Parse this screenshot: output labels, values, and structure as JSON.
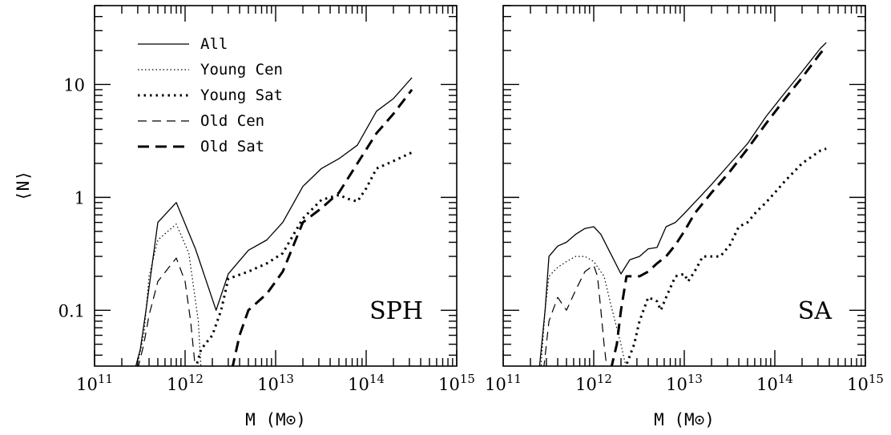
{
  "chart_data": [
    {
      "type": "line",
      "panel_label": "SPH",
      "xlabel": "M (M⊙)",
      "ylabel": "⟨N⟩",
      "x_scale": "log",
      "y_scale": "log",
      "xlim": [
        100000000000.0,
        1000000000000000.0
      ],
      "ylim": [
        0.032,
        50
      ],
      "x_tick_labels": [
        {
          "value": 100000000000.0,
          "base": "10",
          "exp": "11"
        },
        {
          "value": 1000000000000.0,
          "base": "10",
          "exp": "12"
        },
        {
          "value": 10000000000000.0,
          "base": "10",
          "exp": "13"
        },
        {
          "value": 100000000000000.0,
          "base": "10",
          "exp": "14"
        },
        {
          "value": 1000000000000000.0,
          "base": "10",
          "exp": "15"
        }
      ],
      "y_tick_labels": [
        {
          "value": 0.1,
          "label": "0.1"
        },
        {
          "value": 1,
          "label": "1"
        },
        {
          "value": 10,
          "label": "10"
        }
      ],
      "legend": {
        "position": "top-left"
      },
      "series": [
        {
          "name": "All",
          "style": "solid-thin",
          "points": [
            [
              280000000000.0,
              0.03
            ],
            [
              320000000000.0,
              0.045
            ],
            [
              370000000000.0,
              0.1
            ],
            [
              500000000000.0,
              0.6
            ],
            [
              800000000000.0,
              0.9
            ],
            [
              1300000000000.0,
              0.35
            ],
            [
              2200000000000.0,
              0.1
            ],
            [
              3000000000000.0,
              0.21
            ],
            [
              5000000000000.0,
              0.34
            ],
            [
              8000000000000.0,
              0.42
            ],
            [
              12000000000000.0,
              0.6
            ],
            [
              20000000000000.0,
              1.25
            ],
            [
              32000000000000.0,
              1.8
            ],
            [
              50000000000000.0,
              2.2
            ],
            [
              80000000000000.0,
              2.9
            ],
            [
              130000000000000.0,
              5.8
            ],
            [
              200000000000000.0,
              7.5
            ],
            [
              320000000000000.0,
              11.5
            ]
          ]
        },
        {
          "name": "Young Cen",
          "style": "dotted-thin",
          "points": [
            [
              290000000000.0,
              0.03
            ],
            [
              350000000000.0,
              0.06
            ],
            [
              400000000000.0,
              0.2
            ],
            [
              500000000000.0,
              0.42
            ],
            [
              800000000000.0,
              0.58
            ],
            [
              1100000000000.0,
              0.32
            ],
            [
              1400000000000.0,
              0.08
            ],
            [
              1500000000000.0,
              0.03
            ]
          ]
        },
        {
          "name": "Young Sat",
          "style": "dotted-thick",
          "points": [
            [
              1300000000000.0,
              0.03
            ],
            [
              1500000000000.0,
              0.045
            ],
            [
              2000000000000.0,
              0.06
            ],
            [
              2500000000000.0,
              0.1
            ],
            [
              3000000000000.0,
              0.19
            ],
            [
              5000000000000.0,
              0.22
            ],
            [
              8000000000000.0,
              0.26
            ],
            [
              12000000000000.0,
              0.32
            ],
            [
              20000000000000.0,
              0.65
            ],
            [
              32000000000000.0,
              0.95
            ],
            [
              40000000000000.0,
              1.0
            ],
            [
              50000000000000.0,
              1.05
            ],
            [
              63000000000000.0,
              0.97
            ],
            [
              80000000000000.0,
              0.92
            ],
            [
              100000000000000.0,
              1.2
            ],
            [
              130000000000000.0,
              1.8
            ],
            [
              200000000000000.0,
              2.1
            ],
            [
              320000000000000.0,
              2.5
            ]
          ]
        },
        {
          "name": "Old Cen",
          "style": "dashed-thin",
          "points": [
            [
              300000000000.0,
              0.03
            ],
            [
              350000000000.0,
              0.05
            ],
            [
              400000000000.0,
              0.09
            ],
            [
              500000000000.0,
              0.18
            ],
            [
              800000000000.0,
              0.29
            ],
            [
              1000000000000.0,
              0.18
            ],
            [
              1150000000000.0,
              0.08
            ],
            [
              1300000000000.0,
              0.03
            ]
          ]
        },
        {
          "name": "Old Sat",
          "style": "dashed-thick",
          "points": [
            [
              3300000000000.0,
              0.03
            ],
            [
              4000000000000.0,
              0.06
            ],
            [
              5000000000000.0,
              0.1
            ],
            [
              8000000000000.0,
              0.14
            ],
            [
              12000000000000.0,
              0.22
            ],
            [
              20000000000000.0,
              0.6
            ],
            [
              32000000000000.0,
              0.8
            ],
            [
              50000000000000.0,
              1.1
            ],
            [
              80000000000000.0,
              2.0
            ],
            [
              130000000000000.0,
              3.7
            ],
            [
              200000000000000.0,
              5.5
            ],
            [
              320000000000000.0,
              9.0
            ]
          ]
        }
      ]
    },
    {
      "type": "line",
      "panel_label": "SA",
      "xlabel": "M (M⊙)",
      "ylabel": "",
      "x_scale": "log",
      "y_scale": "log",
      "xlim": [
        100000000000.0,
        1000000000000000.0
      ],
      "ylim": [
        0.032,
        50
      ],
      "x_tick_labels": [
        {
          "value": 100000000000.0,
          "base": "10",
          "exp": "11"
        },
        {
          "value": 1000000000000.0,
          "base": "10",
          "exp": "12"
        },
        {
          "value": 10000000000000.0,
          "base": "10",
          "exp": "13"
        },
        {
          "value": 100000000000000.0,
          "base": "10",
          "exp": "14"
        },
        {
          "value": 1000000000000000.0,
          "base": "10",
          "exp": "15"
        }
      ],
      "y_tick_labels": [],
      "series": [
        {
          "name": "All",
          "style": "solid-thin",
          "points": [
            [
              250000000000.0,
              0.03
            ],
            [
              290000000000.0,
              0.1
            ],
            [
              320000000000.0,
              0.3
            ],
            [
              400000000000.0,
              0.37
            ],
            [
              500000000000.0,
              0.4
            ],
            [
              630000000000.0,
              0.47
            ],
            [
              800000000000.0,
              0.53
            ],
            [
              1000000000000.0,
              0.55
            ],
            [
              1200000000000.0,
              0.47
            ],
            [
              1500000000000.0,
              0.33
            ],
            [
              2000000000000.0,
              0.21
            ],
            [
              2500000000000.0,
              0.28
            ],
            [
              3200000000000.0,
              0.3
            ],
            [
              4000000000000.0,
              0.35
            ],
            [
              5000000000000.0,
              0.36
            ],
            [
              6300000000000.0,
              0.55
            ],
            [
              8000000000000.0,
              0.6
            ],
            [
              10000000000000.0,
              0.72
            ],
            [
              13000000000000.0,
              0.9
            ],
            [
              20000000000000.0,
              1.3
            ],
            [
              32000000000000.0,
              2.0
            ],
            [
              50000000000000.0,
              3.0
            ],
            [
              80000000000000.0,
              5.2
            ],
            [
              130000000000000.0,
              8.5
            ],
            [
              200000000000000.0,
              13.0
            ],
            [
              320000000000000.0,
              21.0
            ],
            [
              370000000000000.0,
              23.5
            ]
          ]
        },
        {
          "name": "Young Cen",
          "style": "dotted-thin",
          "points": [
            [
              260000000000.0,
              0.03
            ],
            [
              290000000000.0,
              0.1
            ],
            [
              320000000000.0,
              0.2
            ],
            [
              400000000000.0,
              0.24
            ],
            [
              500000000000.0,
              0.27
            ],
            [
              630000000000.0,
              0.3
            ],
            [
              800000000000.0,
              0.3
            ],
            [
              1000000000000.0,
              0.27
            ],
            [
              1300000000000.0,
              0.2
            ],
            [
              1600000000000.0,
              0.1
            ],
            [
              2000000000000.0,
              0.05
            ],
            [
              2300000000000.0,
              0.03
            ]
          ]
        },
        {
          "name": "Young Sat",
          "style": "dotted-thick",
          "points": [
            [
              2200000000000.0,
              0.03
            ],
            [
              2800000000000.0,
              0.05
            ],
            [
              3200000000000.0,
              0.08
            ],
            [
              4000000000000.0,
              0.13
            ],
            [
              5000000000000.0,
              0.12
            ],
            [
              5500000000000.0,
              0.1
            ],
            [
              6300000000000.0,
              0.13
            ],
            [
              8000000000000.0,
              0.2
            ],
            [
              10000000000000.0,
              0.21
            ],
            [
              11000000000000.0,
              0.18
            ],
            [
              13000000000000.0,
              0.22
            ],
            [
              16000000000000.0,
              0.3
            ],
            [
              25000000000000.0,
              0.3
            ],
            [
              32000000000000.0,
              0.38
            ],
            [
              40000000000000.0,
              0.55
            ],
            [
              50000000000000.0,
              0.6
            ],
            [
              63000000000000.0,
              0.75
            ],
            [
              80000000000000.0,
              0.9
            ],
            [
              100000000000000.0,
              1.1
            ],
            [
              130000000000000.0,
              1.4
            ],
            [
              200000000000000.0,
              2.0
            ],
            [
              320000000000000.0,
              2.6
            ],
            [
              370000000000000.0,
              2.7
            ]
          ]
        },
        {
          "name": "Old Cen",
          "style": "dashed-thin",
          "points": [
            [
              280000000000.0,
              0.03
            ],
            [
              320000000000.0,
              0.08
            ],
            [
              400000000000.0,
              0.13
            ],
            [
              500000000000.0,
              0.1
            ],
            [
              630000000000.0,
              0.15
            ],
            [
              800000000000.0,
              0.22
            ],
            [
              1000000000000.0,
              0.25
            ],
            [
              1100000000000.0,
              0.2
            ],
            [
              1200000000000.0,
              0.1
            ],
            [
              1300000000000.0,
              0.05
            ],
            [
              1400000000000.0,
              0.03
            ]
          ]
        },
        {
          "name": "Old Sat",
          "style": "dashed-thick",
          "points": [
            [
              1550000000000.0,
              0.03
            ],
            [
              1800000000000.0,
              0.05
            ],
            [
              2000000000000.0,
              0.1
            ],
            [
              2300000000000.0,
              0.2
            ],
            [
              3200000000000.0,
              0.2
            ],
            [
              4000000000000.0,
              0.22
            ],
            [
              5000000000000.0,
              0.26
            ],
            [
              6300000000000.0,
              0.3
            ],
            [
              8000000000000.0,
              0.38
            ],
            [
              10000000000000.0,
              0.5
            ],
            [
              13000000000000.0,
              0.72
            ],
            [
              20000000000000.0,
              1.1
            ],
            [
              32000000000000.0,
              1.7
            ],
            [
              50000000000000.0,
              2.7
            ],
            [
              80000000000000.0,
              4.5
            ],
            [
              130000000000000.0,
              7.5
            ],
            [
              200000000000000.0,
              11.5
            ],
            [
              320000000000000.0,
              19.0
            ],
            [
              370000000000000.0,
              21.5
            ]
          ]
        }
      ]
    }
  ]
}
